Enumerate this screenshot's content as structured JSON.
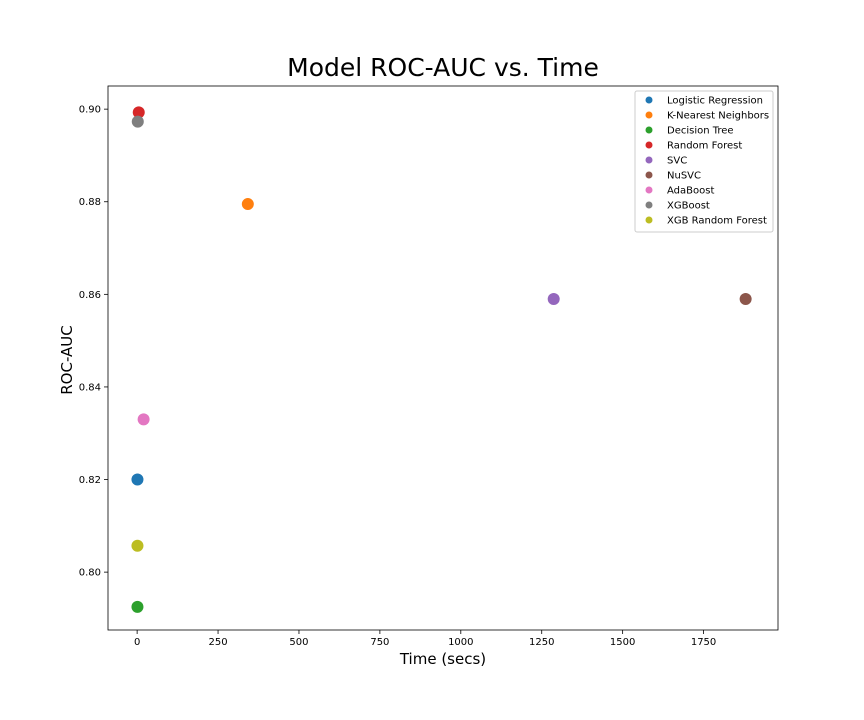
{
  "chart_data": {
    "type": "scatter",
    "title": "Model ROC-AUC vs. Time",
    "xlabel": "Time (secs)",
    "ylabel": "ROC-AUC",
    "xlim": [
      -90,
      1980
    ],
    "ylim": [
      0.7875,
      0.905
    ],
    "xticks": [
      0,
      250,
      500,
      750,
      1000,
      1250,
      1500,
      1750
    ],
    "yticks": [
      0.8,
      0.82,
      0.84,
      0.86,
      0.88,
      0.9
    ],
    "grid": false,
    "legend_position": "top-right",
    "series": [
      {
        "name": "Logistic Regression",
        "color": "#1f77b4",
        "x": 1,
        "y": 0.82
      },
      {
        "name": "K-Nearest Neighbors",
        "color": "#ff7f0e",
        "x": 342,
        "y": 0.8795
      },
      {
        "name": "Decision Tree",
        "color": "#2ca02c",
        "x": 1,
        "y": 0.7925
      },
      {
        "name": "Random Forest",
        "color": "#d62728",
        "x": 5,
        "y": 0.8993
      },
      {
        "name": "SVC",
        "color": "#9467bd",
        "x": 1287,
        "y": 0.859
      },
      {
        "name": "NuSVC",
        "color": "#8c564b",
        "x": 1880,
        "y": 0.859
      },
      {
        "name": "AdaBoost",
        "color": "#e377c2",
        "x": 20,
        "y": 0.833
      },
      {
        "name": "XGBoost",
        "color": "#7f7f7f",
        "x": 2,
        "y": 0.8973
      },
      {
        "name": "XGB Random Forest",
        "color": "#bcbd22",
        "x": 1,
        "y": 0.8057
      }
    ]
  }
}
